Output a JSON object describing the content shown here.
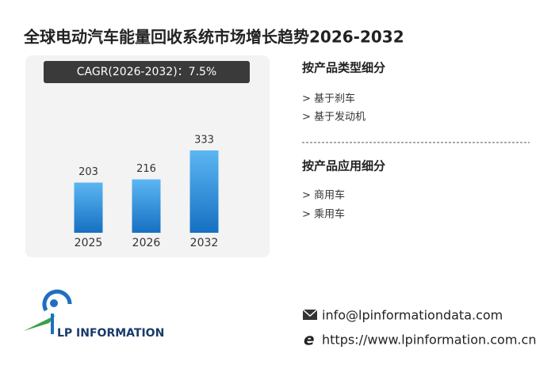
{
  "chart_data": {
    "type": "bar",
    "title": "全球电动汽车能量回收系统市场增长趋势2026-2032",
    "subtitle": "CAGR(2026-2032)：7.5%",
    "categories": [
      "2025",
      "2026",
      "2032"
    ],
    "values": [
      203,
      216,
      333
    ]
  },
  "segments": [
    {
      "title": "按产品类型细分",
      "items": [
        "> 基于刹车",
        "> 基于发动机"
      ]
    },
    {
      "title": "按产品应用细分",
      "items": [
        "> 商用车",
        "> 乘用车"
      ]
    }
  ],
  "logo": "LP INFORMATION",
  "contact": {
    "email": "info@lpinformationdata.com",
    "website": "https://www.lpinformation.com.cn"
  }
}
